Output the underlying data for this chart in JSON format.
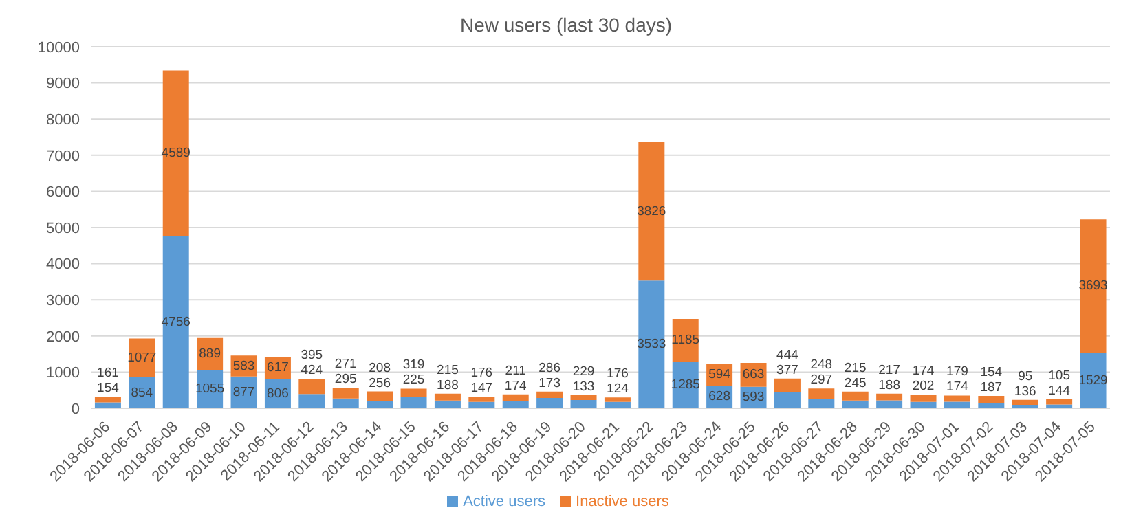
{
  "chart_data": {
    "type": "bar",
    "title": "New users (last 30 days)",
    "stacked": true,
    "data_labels": true,
    "grid": "y",
    "legend": "bottom",
    "categories": [
      "2018-06-06",
      "2018-06-07",
      "2018-06-08",
      "2018-06-09",
      "2018-06-10",
      "2018-06-11",
      "2018-06-12",
      "2018-06-13",
      "2018-06-14",
      "2018-06-15",
      "2018-06-16",
      "2018-06-17",
      "2018-06-18",
      "2018-06-19",
      "2018-06-20",
      "2018-06-21",
      "2018-06-22",
      "2018-06-23",
      "2018-06-24",
      "2018-06-25",
      "2018-06-26",
      "2018-06-27",
      "2018-06-28",
      "2018-06-29",
      "2018-06-30",
      "2018-07-01",
      "2018-07-02",
      "2018-07-03",
      "2018-07-04",
      "2018-07-05"
    ],
    "series": [
      {
        "name": "Active users",
        "color": "#5b9bd5",
        "values": [
          161,
          854,
          4756,
          1055,
          877,
          806,
          395,
          271,
          208,
          319,
          215,
          176,
          211,
          286,
          229,
          176,
          3533,
          1285,
          628,
          593,
          444,
          248,
          215,
          217,
          174,
          179,
          154,
          95,
          105,
          1529
        ]
      },
      {
        "name": "Inactive users",
        "color": "#ed7d31",
        "values": [
          154,
          1077,
          4589,
          889,
          583,
          617,
          424,
          295,
          256,
          225,
          188,
          147,
          174,
          173,
          133,
          124,
          3826,
          1185,
          594,
          663,
          377,
          297,
          245,
          188,
          202,
          174,
          187,
          136,
          144,
          3693
        ]
      }
    ],
    "ylim": [
      0,
      10000
    ],
    "yticks": [
      0,
      1000,
      2000,
      3000,
      4000,
      5000,
      6000,
      7000,
      8000,
      9000,
      10000
    ]
  }
}
